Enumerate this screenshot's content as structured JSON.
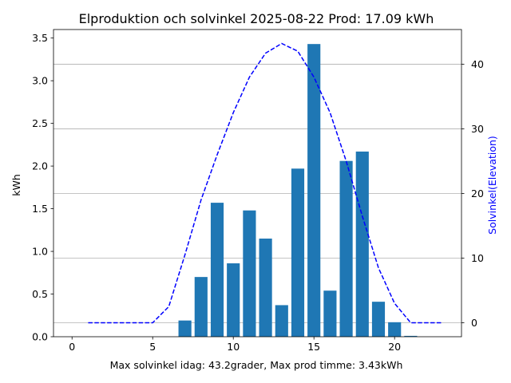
{
  "chart_data": {
    "type": "bar",
    "title": "Elproduktion och solvinkel 2025-08-22 Prod: 17.09 kWh",
    "xlabel": "Max solvinkel idag: 43.2grader, Max prod timme: 3.43kWh",
    "ylabel": "kWh",
    "y2label": "Solvinkel(Elevation)",
    "xlim": [
      -1.15,
      24.15
    ],
    "ylim": [
      0,
      3.6
    ],
    "y2lim": [
      -2.16,
      45.36
    ],
    "x_ticks": [
      0,
      5,
      10,
      15,
      20
    ],
    "y_ticks": [
      0.0,
      0.5,
      1.0,
      1.5,
      2.0,
      2.5,
      3.0,
      3.5
    ],
    "y_tick_labels": [
      "0.0",
      "0.5",
      "1.0",
      "1.5",
      "2.0",
      "2.5",
      "3.0",
      "3.5"
    ],
    "y2_ticks": [
      0,
      10,
      20,
      30,
      40
    ],
    "grid": "horizontal lines at right-axis ticks",
    "bar_color": "#1f77b4",
    "line_color": "#0000ff",
    "series": [
      {
        "kind": "bar",
        "axis": "left",
        "x": [
          7,
          8,
          9,
          10,
          11,
          12,
          13,
          14,
          15,
          16,
          17,
          18,
          19,
          20,
          21
        ],
        "values": [
          0.19,
          0.7,
          1.57,
          0.86,
          1.48,
          1.15,
          0.37,
          1.97,
          3.43,
          0.54,
          2.06,
          2.17,
          0.41,
          0.17,
          0.01
        ]
      },
      {
        "kind": "line",
        "style": "dashed",
        "axis": "right",
        "x": [
          1,
          2,
          3,
          4,
          5,
          6,
          7,
          8,
          9,
          10,
          11,
          12,
          13,
          14,
          15,
          16,
          17,
          18,
          19,
          20,
          21,
          22,
          23
        ],
        "values": [
          0,
          0,
          0,
          0,
          0,
          2.5,
          10.5,
          19.0,
          26.0,
          32.5,
          38.0,
          41.7,
          43.2,
          42.0,
          38.0,
          32.5,
          25.0,
          16.5,
          8.5,
          3.0,
          0,
          0,
          0
        ]
      }
    ]
  }
}
